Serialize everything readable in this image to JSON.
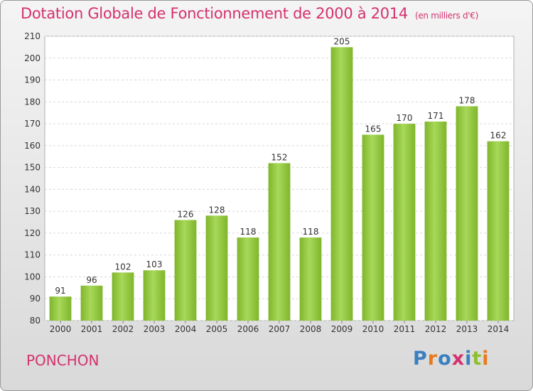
{
  "title": "Dotation Globale de Fonctionnement de 2000 à 2014",
  "subtitle": "(en milliers d'€)",
  "place": "PONCHON",
  "logo": {
    "text": "Proxiti",
    "colors": [
      "#3a7fc0",
      "#e87a1e",
      "#3a7fc0",
      "#d4326e",
      "#3a7fc0",
      "#8dbf2a",
      "#e87a1e"
    ]
  },
  "chart_data": {
    "type": "bar",
    "categories": [
      "2000",
      "2001",
      "2002",
      "2003",
      "2004",
      "2005",
      "2006",
      "2007",
      "2008",
      "2009",
      "2010",
      "2011",
      "2012",
      "2013",
      "2014"
    ],
    "values": [
      91,
      96,
      102,
      103,
      126,
      128,
      118,
      152,
      118,
      205,
      165,
      170,
      171,
      178,
      162
    ],
    "value_labels": [
      "91",
      "96",
      "102",
      "103",
      "126",
      "128",
      "118",
      "152",
      "118",
      "205",
      "165",
      "170",
      "171",
      "178",
      "162"
    ],
    "yticks": [
      "80",
      "90",
      "100",
      "110",
      "120",
      "130",
      "140",
      "150",
      "160",
      "170",
      "180",
      "190",
      "200",
      "210"
    ],
    "ylim": [
      80,
      210
    ],
    "grid": true,
    "bar_color": "#7fb52b",
    "bar_color_light": "#a8d85a"
  }
}
